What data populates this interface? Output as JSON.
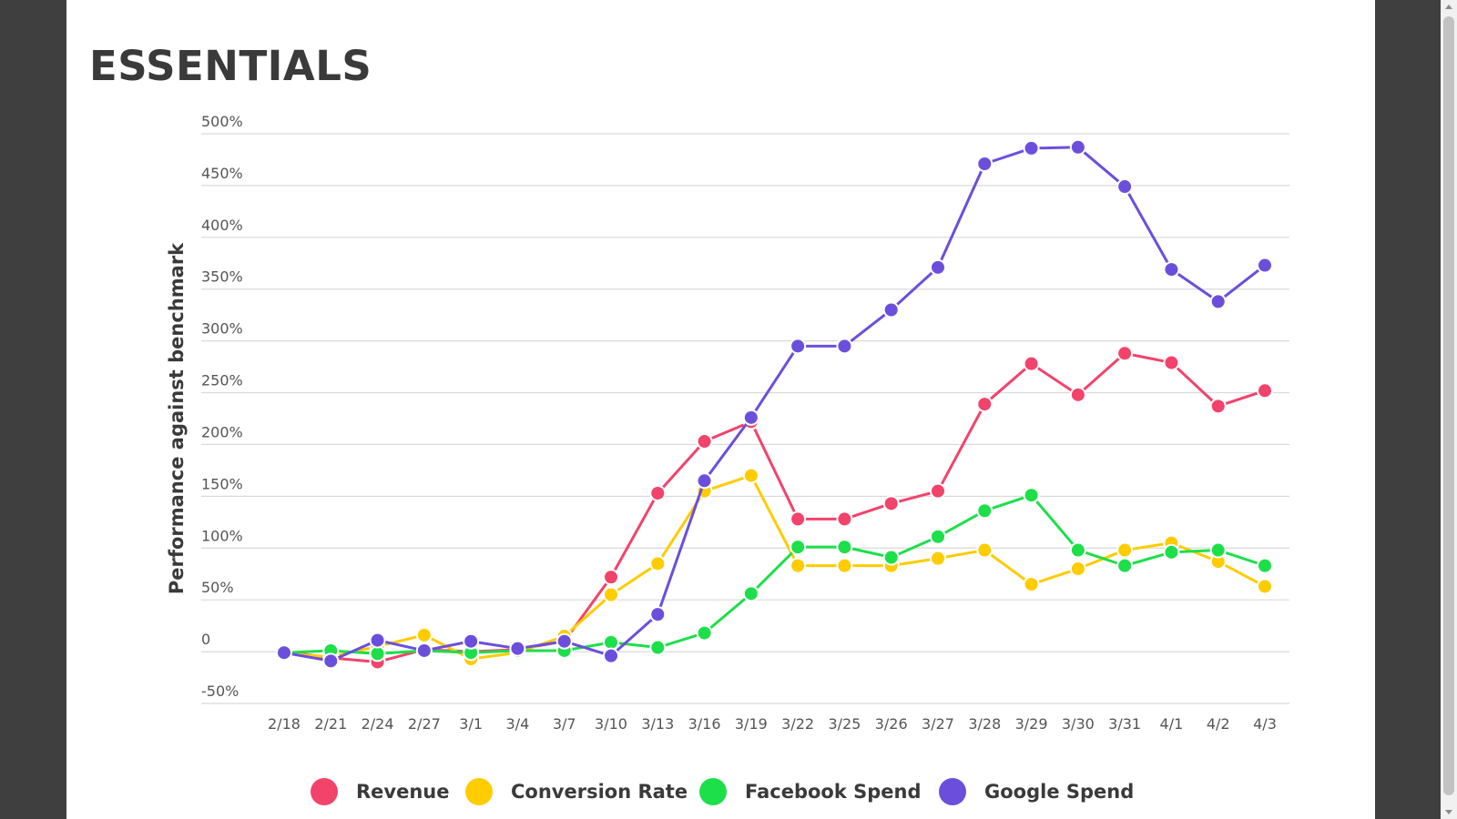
{
  "page": {
    "title": "ESSENTIALS"
  },
  "colors": {
    "background": "#3f3f3f",
    "panel": "#ffffff",
    "grid": "#d9d9d9"
  },
  "chart_data": {
    "type": "line",
    "title": "ESSENTIALS",
    "xlabel": "",
    "ylabel": "Performance against benchmark",
    "ylim": [
      -50,
      500
    ],
    "yticks": [
      {
        "value": -50,
        "label": "-50%"
      },
      {
        "value": 0,
        "label": "0"
      },
      {
        "value": 50,
        "label": "50%"
      },
      {
        "value": 100,
        "label": "100%"
      },
      {
        "value": 150,
        "label": "150%"
      },
      {
        "value": 200,
        "label": "200%"
      },
      {
        "value": 250,
        "label": "250%"
      },
      {
        "value": 300,
        "label": "300%"
      },
      {
        "value": 350,
        "label": "350%"
      },
      {
        "value": 400,
        "label": "400%"
      },
      {
        "value": 450,
        "label": "450%"
      },
      {
        "value": 500,
        "label": "500%"
      }
    ],
    "grid": true,
    "legend": "bottom",
    "categories": [
      "2/18",
      "2/21",
      "2/24",
      "2/27",
      "3/1",
      "3/4",
      "3/7",
      "3/10",
      "3/13",
      "3/16",
      "3/19",
      "3/22",
      "3/25",
      "3/26",
      "3/27",
      "3/28",
      "3/29",
      "3/30",
      "3/31",
      "4/1",
      "4/2",
      "4/3"
    ],
    "series": [
      {
        "name": "Revenue",
        "color": "#f2436b",
        "values": [
          0,
          -6,
          -10,
          2,
          0,
          2,
          10,
          72,
          153,
          203,
          222,
          128,
          128,
          143,
          155,
          239,
          278,
          248,
          288,
          279,
          237,
          252
        ]
      },
      {
        "name": "Conversion Rate",
        "color": "#ffcc00",
        "values": [
          -2,
          -5,
          5,
          16,
          -7,
          -1,
          15,
          55,
          85,
          155,
          170,
          83,
          83,
          83,
          90,
          98,
          65,
          80,
          98,
          105,
          87,
          63
        ]
      },
      {
        "name": "Facebook Spend",
        "color": "#1ddf4a",
        "values": [
          -1,
          1,
          -2,
          1,
          -1,
          1,
          1,
          9,
          4,
          18,
          56,
          101,
          101,
          91,
          111,
          136,
          151,
          98,
          83,
          96,
          98,
          83
        ]
      },
      {
        "name": "Google Spend",
        "color": "#6b4fdc",
        "values": [
          -1,
          -9,
          11,
          1,
          10,
          3,
          10,
          -4,
          36,
          165,
          226,
          295,
          295,
          330,
          371,
          471,
          486,
          487,
          449,
          369,
          338,
          373
        ]
      }
    ]
  }
}
